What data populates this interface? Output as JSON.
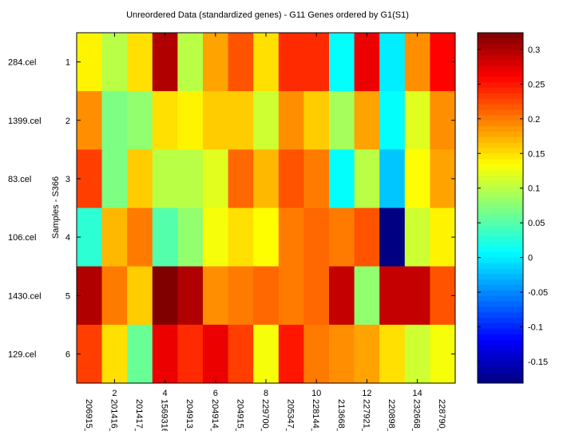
{
  "chart_data": {
    "type": "heatmap",
    "title": "Unreordered Data (standardized genes) - G11 Genes ordered by G1(S1)",
    "ylabel": "Samples - S366",
    "xlabel": "",
    "row_labels": [
      "284.cel",
      "1399.cel",
      "83.cel",
      "106.cel",
      "1430.cel",
      "129.cel"
    ],
    "row_ticks": [
      "1",
      "2",
      "3",
      "4",
      "5",
      "6"
    ],
    "col_labels": [
      "206915_",
      "201416_",
      "201417_",
      "1569316",
      "204913_",
      "204914_",
      "204915_",
      "229700_",
      "205347_",
      "228144_",
      "213668_",
      "227921_",
      "220898_",
      "232668_",
      "228790_"
    ],
    "col_ticks": [
      "2",
      "4",
      "6",
      "8",
      "10",
      "12",
      "14"
    ],
    "colormap": "jet",
    "clim": [
      -0.181,
      0.324
    ],
    "colorbar_ticks": [
      "-0.15",
      "-0.1",
      "-0.05",
      "0",
      "0.05",
      "0.1",
      "0.15",
      "0.2",
      "0.25",
      "0.3"
    ],
    "values": [
      [
        0.14,
        0.1,
        0.15,
        0.3,
        0.1,
        0.18,
        0.22,
        0.15,
        0.24,
        0.24,
        0.01,
        0.27,
        0.0,
        0.19,
        0.26
      ],
      [
        0.19,
        0.07,
        0.08,
        0.15,
        0.14,
        0.16,
        0.16,
        0.11,
        0.19,
        0.16,
        0.09,
        0.18,
        0.01,
        0.12,
        0.19
      ],
      [
        0.23,
        0.07,
        0.16,
        0.1,
        0.1,
        0.12,
        0.21,
        0.17,
        0.22,
        0.2,
        0.01,
        0.1,
        -0.02,
        0.135,
        0.18
      ],
      [
        0.03,
        0.17,
        0.2,
        0.05,
        0.08,
        0.13,
        0.15,
        0.135,
        0.2,
        0.21,
        0.2,
        0.22,
        -0.18,
        0.11,
        0.14
      ],
      [
        0.3,
        0.2,
        0.16,
        0.324,
        0.3,
        0.19,
        0.2,
        0.21,
        0.2,
        0.21,
        0.29,
        0.08,
        0.29,
        0.29,
        0.22
      ],
      [
        0.23,
        0.15,
        0.06,
        0.27,
        0.24,
        0.27,
        0.23,
        0.13,
        0.25,
        0.2,
        0.19,
        0.18,
        0.15,
        0.11,
        0.13
      ]
    ]
  }
}
